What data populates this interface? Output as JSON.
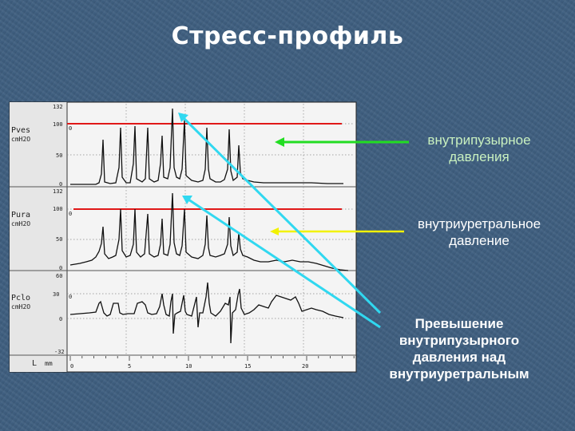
{
  "slide": {
    "title": "Стресс-профиль"
  },
  "annotations": {
    "vesical": "внутрипузырное давления",
    "urethral": "внутриуретральное давление",
    "exceed_lines": [
      "Превышение",
      "внутрипузырного",
      "давления над",
      "внутриуретральным"
    ]
  },
  "panels": [
    {
      "label": "Pves",
      "unit": "cmH2O",
      "ticks": [
        "132",
        "100",
        "50",
        "0"
      ],
      "marker": "0"
    },
    {
      "label": "Pura",
      "unit": "cmH2O",
      "ticks": [
        "132",
        "100",
        "50",
        "0"
      ],
      "marker": "0"
    },
    {
      "label": "Pclo",
      "unit": "cmH2O",
      "ticks": [
        "60",
        "30",
        "0",
        "-32"
      ],
      "marker": "0"
    }
  ],
  "x_axis": {
    "label": "L",
    "unit": "mm",
    "ticks": [
      "0",
      "5",
      "10",
      "15",
      "20"
    ]
  },
  "colors": {
    "reference_line": "#e01818",
    "arrow_vesical": "#22dd22",
    "arrow_urethral": "#f2f200",
    "arrow_exceed": "#30d8f0",
    "trace": "#111111"
  }
}
